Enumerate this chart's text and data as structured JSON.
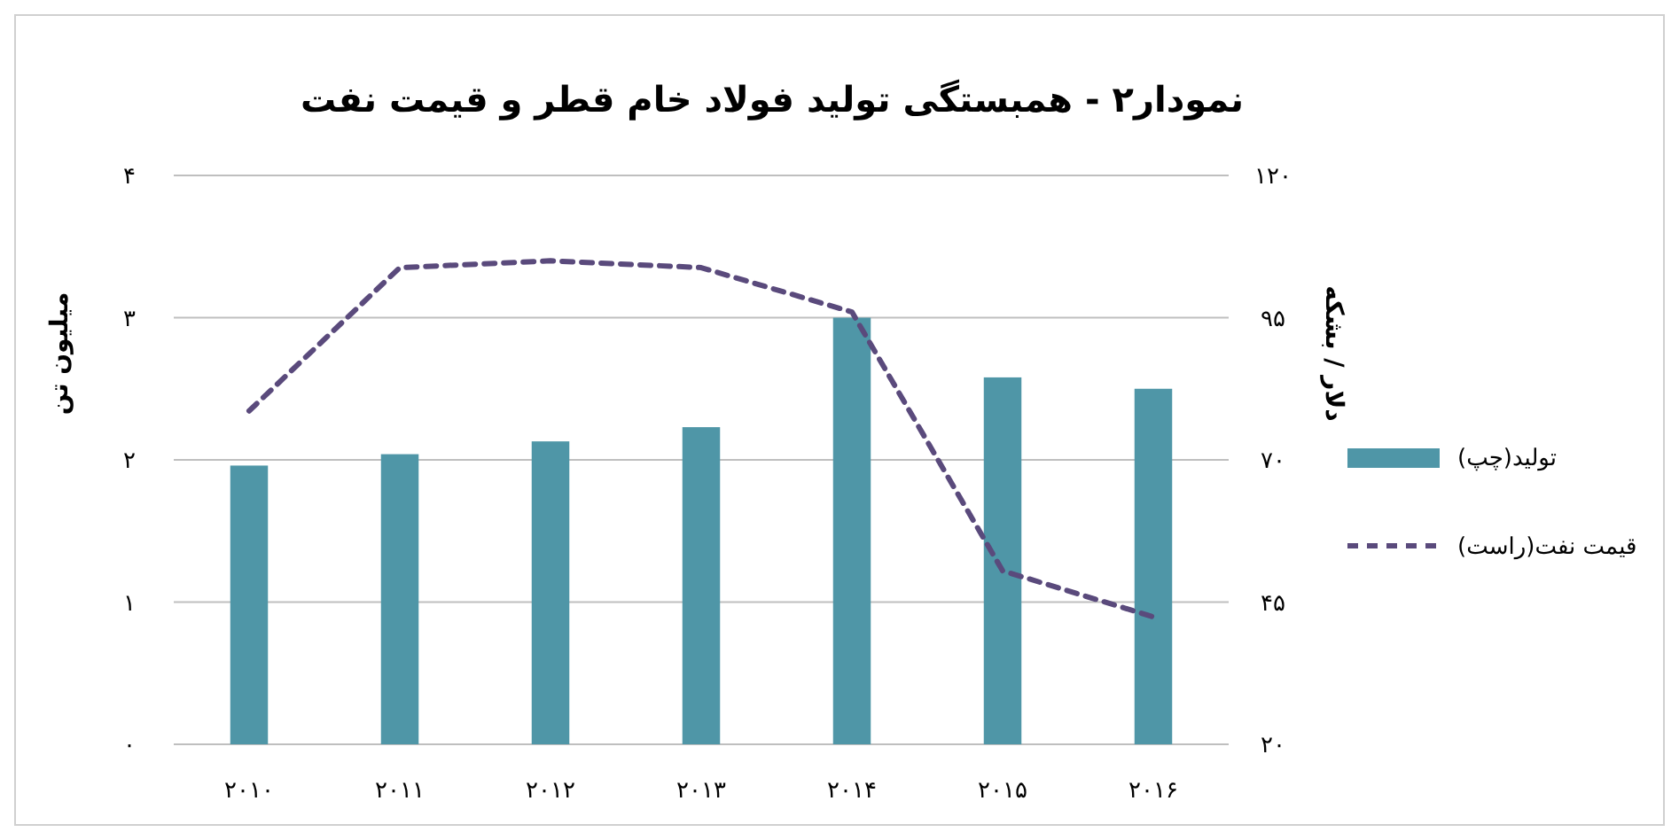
{
  "chart_data": {
    "type": "bar",
    "title": "نمودار۲ - همبستگی تولید فولاد خام قطر و قیمت نفت",
    "ylabel": "میلیون تن",
    "y2label": "دلار / بشکه",
    "categories": [
      "۲۰۱۰",
      "۲۰۱۱",
      "۲۰۱۲",
      "۲۰۱۳",
      "۲۰۱۴",
      "۲۰۱۵",
      "۲۰۱۶"
    ],
    "series": [
      {
        "name": "تولید(چپ)",
        "color": "#4f96a7",
        "values": [
          1.96,
          2.04,
          2.13,
          2.23,
          3.0,
          2.58,
          2.5
        ]
      },
      {
        "name": "قیمت نفت(راست)",
        "type": "line",
        "axis": "y2",
        "color": "#5a4a7c",
        "line_style": "dashed",
        "values": [
          78.6,
          103.8,
          105,
          103.8,
          96,
          50.5,
          42.4
        ]
      }
    ],
    "ylim": [
      0,
      4
    ],
    "yticks": [
      {
        "value": 0,
        "label": "۰"
      },
      {
        "value": 1,
        "label": "۱"
      },
      {
        "value": 2,
        "label": "۲"
      },
      {
        "value": 3,
        "label": "۳"
      },
      {
        "value": 4,
        "label": "۴"
      }
    ],
    "y2lim": [
      20,
      120
    ],
    "y2ticks": [
      {
        "value": 20,
        "label": "۲۰"
      },
      {
        "value": 45,
        "label": "۴۵"
      },
      {
        "value": 70,
        "label": "۷۰"
      },
      {
        "value": 95,
        "label": "۹۵"
      },
      {
        "value": 120,
        "label": "۱۲۰"
      }
    ],
    "grid": "y",
    "legend": "right"
  }
}
